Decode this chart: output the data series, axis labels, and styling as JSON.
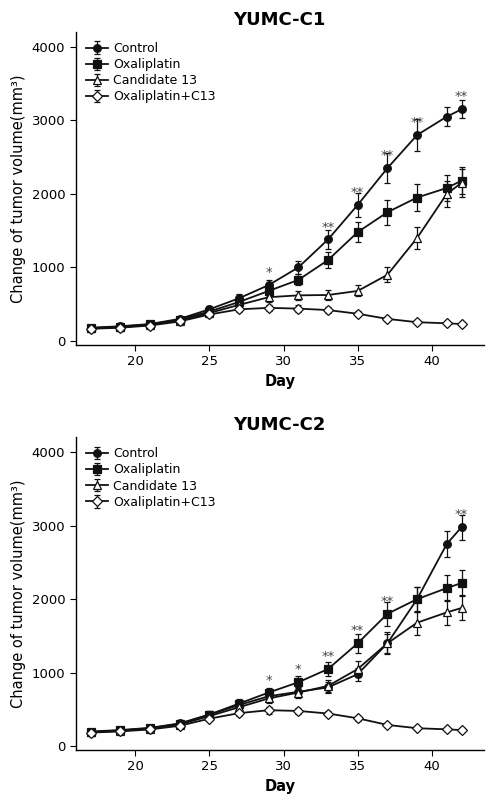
{
  "title1": "YUMC-C1",
  "title2": "YUMC-C2",
  "xlabel": "Day",
  "ylabel": "Change of tumor volume(mm³)",
  "markers": [
    "o",
    "s",
    "^",
    "D"
  ],
  "xlim": [
    16,
    43.5
  ],
  "ylim": [
    -50,
    4200
  ],
  "yticks": [
    0,
    1000,
    2000,
    3000,
    4000
  ],
  "xticks": [
    20,
    25,
    30,
    35,
    40
  ],
  "c1": {
    "days": [
      17,
      19,
      21,
      23,
      25,
      27,
      29,
      31,
      33,
      35,
      37,
      39,
      41,
      42
    ],
    "control": [
      180,
      200,
      230,
      300,
      430,
      580,
      760,
      1000,
      1380,
      1850,
      2350,
      2800,
      3050,
      3150
    ],
    "control_err": [
      20,
      22,
      25,
      32,
      45,
      55,
      70,
      90,
      130,
      160,
      200,
      220,
      130,
      120
    ],
    "oxaliplatin": [
      175,
      195,
      225,
      290,
      400,
      530,
      680,
      830,
      1100,
      1480,
      1750,
      1950,
      2080,
      2180
    ],
    "oxaliplatin_err": [
      20,
      22,
      25,
      32,
      45,
      55,
      65,
      75,
      110,
      140,
      170,
      180,
      180,
      180
    ],
    "candidate13": [
      170,
      188,
      218,
      278,
      380,
      490,
      595,
      620,
      625,
      680,
      900,
      1400,
      2000,
      2150
    ],
    "candidate13_err": [
      20,
      22,
      25,
      30,
      42,
      50,
      60,
      65,
      68,
      75,
      100,
      150,
      180,
      190
    ],
    "combo": [
      165,
      180,
      210,
      265,
      360,
      430,
      450,
      440,
      420,
      370,
      300,
      255,
      240,
      230
    ],
    "combo_err": [
      18,
      20,
      23,
      28,
      38,
      42,
      44,
      43,
      40,
      37,
      30,
      27,
      25,
      24
    ],
    "star_days": [
      29,
      33,
      35,
      37,
      39,
      42
    ],
    "star_vals": [
      760,
      1380,
      1850,
      2350,
      2800,
      3150
    ],
    "star_labels": [
      "*",
      "**",
      "**",
      "**",
      "**",
      "**"
    ]
  },
  "c2": {
    "days": [
      17,
      19,
      21,
      23,
      25,
      27,
      29,
      31,
      33,
      35,
      37,
      39,
      41,
      42
    ],
    "control": [
      200,
      220,
      250,
      310,
      430,
      560,
      680,
      740,
      800,
      980,
      1400,
      2000,
      2750,
      2980
    ],
    "control_err": [
      22,
      24,
      28,
      34,
      46,
      56,
      62,
      68,
      72,
      90,
      130,
      170,
      180,
      170
    ],
    "oxaliplatin": [
      195,
      215,
      245,
      305,
      430,
      580,
      730,
      870,
      1050,
      1400,
      1800,
      2000,
      2150,
      2220
    ],
    "oxaliplatin_err": [
      22,
      24,
      28,
      34,
      46,
      58,
      68,
      80,
      100,
      130,
      160,
      170,
      175,
      175
    ],
    "candidate13": [
      190,
      208,
      238,
      295,
      410,
      530,
      650,
      730,
      820,
      1050,
      1400,
      1680,
      1820,
      1880
    ],
    "candidate13_err": [
      22,
      24,
      28,
      33,
      44,
      54,
      62,
      70,
      80,
      110,
      150,
      165,
      170,
      170
    ],
    "combo": [
      185,
      202,
      228,
      278,
      375,
      450,
      490,
      480,
      445,
      380,
      290,
      245,
      230,
      220
    ],
    "combo_err": [
      20,
      22,
      25,
      30,
      38,
      44,
      46,
      44,
      40,
      35,
      27,
      24,
      23,
      22
    ],
    "star_days": [
      29,
      31,
      33,
      35,
      37,
      42
    ],
    "star_vals": [
      730,
      870,
      1050,
      1400,
      1800,
      2980
    ],
    "star_labels": [
      "*",
      "*",
      "**",
      "**",
      "**",
      "**"
    ]
  },
  "background_color": "#ffffff",
  "linewidth": 1.3,
  "markersize": 5.5,
  "capsize": 2.5,
  "elinewidth": 0.9,
  "title_fontsize": 13,
  "label_fontsize": 10.5,
  "tick_fontsize": 9.5,
  "legend_fontsize": 9,
  "star_fontsize": 9.5
}
